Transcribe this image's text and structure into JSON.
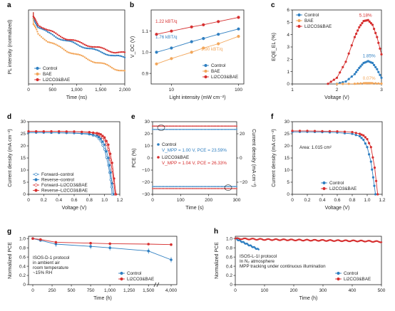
{
  "colors": {
    "control": "#2f7fc1",
    "bae": "#f2a65a",
    "li": "#d62f2f",
    "axis": "#222222"
  },
  "chart_data": [
    {
      "id": "a",
      "type": "scatter",
      "panel_label": "a",
      "xlabel": "Time (ns)",
      "ylabel": "PL intensity (normalized)",
      "xlim": [
        0,
        2000
      ],
      "ylim": [
        0.05,
        1.1
      ],
      "ylog": true,
      "xticks": [
        0,
        500,
        1000,
        1500,
        2000
      ],
      "xtick_labels": [
        "0",
        "500",
        "1,000",
        "1,500",
        "2,000"
      ],
      "series": [
        {
          "name": "Control",
          "color_key": "control",
          "x": [
            100,
            200,
            400,
            600,
            800,
            1000,
            1200,
            1400,
            1600,
            1800,
            2000
          ],
          "values": [
            0.75,
            0.55,
            0.42,
            0.35,
            0.3,
            0.26,
            0.23,
            0.2,
            0.18,
            0.16,
            0.15
          ]
        },
        {
          "name": "BAE",
          "color_key": "bae",
          "x": [
            100,
            200,
            400,
            600,
            800,
            1000,
            1200,
            1400,
            1600,
            1800,
            2000
          ],
          "values": [
            0.6,
            0.4,
            0.3,
            0.24,
            0.2,
            0.17,
            0.145,
            0.125,
            0.11,
            0.095,
            0.085
          ]
        },
        {
          "name": "Li2CO3&BAE",
          "color_key": "li",
          "x": [
            100,
            200,
            400,
            600,
            800,
            1000,
            1200,
            1400,
            1600,
            1800,
            2000
          ],
          "values": [
            0.8,
            0.6,
            0.47,
            0.39,
            0.33,
            0.29,
            0.26,
            0.23,
            0.21,
            0.19,
            0.18
          ]
        }
      ]
    },
    {
      "id": "b",
      "type": "scatter",
      "panel_label": "b",
      "xlabel": "Light intensity (mW cm⁻²)",
      "ylabel": "V_OC (V)",
      "xlim": [
        5,
        120
      ],
      "xlog": true,
      "ylim": [
        0.85,
        1.2
      ],
      "xticks": [
        10,
        100
      ],
      "xtick_labels": [
        "10",
        "100"
      ],
      "yticks": [
        0.9,
        1.0,
        1.1
      ],
      "ytick_labels": [
        "0.9",
        "1.0",
        "1.1"
      ],
      "series": [
        {
          "name": "Control",
          "color_key": "control",
          "x": [
            6,
            10,
            20,
            30,
            50,
            100
          ],
          "values": [
            1.0,
            1.02,
            1.05,
            1.065,
            1.085,
            1.11
          ]
        },
        {
          "name": "BAE",
          "color_key": "bae",
          "x": [
            6,
            10,
            20,
            30,
            50,
            100
          ],
          "values": [
            0.945,
            0.97,
            1.0,
            1.02,
            1.04,
            1.075
          ]
        },
        {
          "name": "Li2CO3&BAE",
          "color_key": "li",
          "x": [
            6,
            10,
            20,
            30,
            50,
            100
          ],
          "values": [
            1.085,
            1.1,
            1.12,
            1.13,
            1.145,
            1.165
          ]
        }
      ],
      "annotations": [
        "1.22 kBT/q",
        "1.76 kBT/q",
        "1.90 kBT/q"
      ]
    },
    {
      "id": "c",
      "type": "scatter",
      "panel_label": "c",
      "xlabel": "Voltage (V)",
      "ylabel": "EQE_EL (%)",
      "xlim": [
        1,
        3
      ],
      "ylim": [
        0,
        6
      ],
      "xticks": [
        1,
        2,
        3
      ],
      "xtick_labels": [
        "1",
        "2",
        "3"
      ],
      "yticks": [
        0,
        1,
        2,
        3,
        4,
        5,
        6
      ],
      "ytick_labels": [
        "0",
        "1",
        "2",
        "3",
        "4",
        "5",
        "6"
      ],
      "series": [
        {
          "name": "Control",
          "color_key": "control",
          "x": [
            2.0,
            2.2,
            2.4,
            2.5,
            2.6,
            2.7,
            2.8,
            2.9,
            3.0
          ],
          "values": [
            0.02,
            0.2,
            0.8,
            1.3,
            1.7,
            1.85,
            1.7,
            1.2,
            0.5
          ]
        },
        {
          "name": "BAE",
          "color_key": "bae",
          "x": [
            2.0,
            2.4,
            2.6,
            2.7,
            2.8,
            3.0
          ],
          "values": [
            0.0,
            0.02,
            0.06,
            0.07,
            0.06,
            0.03
          ]
        },
        {
          "name": "Li2CO3&BAE",
          "color_key": "li",
          "x": [
            1.8,
            2.0,
            2.2,
            2.4,
            2.5,
            2.6,
            2.7,
            2.8,
            2.9,
            3.0
          ],
          "values": [
            0.02,
            0.5,
            1.8,
            3.8,
            4.6,
            5.1,
            5.18,
            4.8,
            3.8,
            2.4
          ]
        }
      ],
      "annotations": [
        "5.18%",
        "1.85%",
        "0.07%"
      ]
    },
    {
      "id": "d",
      "type": "line",
      "panel_label": "d",
      "xlabel": "Voltage (V)",
      "ylabel": "Current density (mA cm⁻²)",
      "xlim": [
        0,
        1.2
      ],
      "ylim": [
        0,
        30
      ],
      "xticks": [
        0,
        0.2,
        0.4,
        0.6,
        0.8,
        1.0,
        1.2
      ],
      "xtick_labels": [
        "0",
        "0.2",
        "0.4",
        "0.6",
        "0.8",
        "1.0",
        "1.2"
      ],
      "yticks": [
        0,
        5,
        10,
        15,
        20,
        25,
        30
      ],
      "ytick_labels": [
        "0",
        "5",
        "10",
        "15",
        "20",
        "25",
        "30"
      ],
      "series": [
        {
          "name": "Forward–control",
          "color_key": "control",
          "marker": "open",
          "x": [
            0,
            0.2,
            0.4,
            0.6,
            0.8,
            0.9,
            0.95,
            1.0,
            1.05,
            1.08,
            1.1
          ],
          "values": [
            25.5,
            25.5,
            25.4,
            25.3,
            24.8,
            23.8,
            22.0,
            18.5,
            12.0,
            6.0,
            0
          ]
        },
        {
          "name": "Reverse–control",
          "color_key": "control",
          "marker": "filled",
          "x": [
            0,
            0.2,
            0.4,
            0.6,
            0.8,
            0.9,
            0.95,
            1.0,
            1.05,
            1.08,
            1.12
          ],
          "values": [
            25.5,
            25.5,
            25.4,
            25.3,
            25.0,
            24.3,
            23.0,
            20.5,
            15.0,
            9.0,
            0
          ]
        },
        {
          "name": "Forward–Li2CO3&BAE",
          "color_key": "li",
          "marker": "open",
          "x": [
            0,
            0.2,
            0.4,
            0.6,
            0.8,
            0.9,
            0.95,
            1.0,
            1.05,
            1.1,
            1.14
          ],
          "values": [
            26.0,
            26.0,
            26.0,
            25.9,
            25.6,
            25.0,
            24.2,
            22.5,
            18.5,
            10.0,
            0
          ]
        },
        {
          "name": "Reverse–Li2CO3&BAE",
          "color_key": "li",
          "marker": "filled",
          "x": [
            0,
            0.2,
            0.4,
            0.6,
            0.8,
            0.9,
            0.95,
            1.0,
            1.05,
            1.1,
            1.15
          ],
          "values": [
            26.0,
            26.0,
            26.0,
            25.9,
            25.7,
            25.3,
            24.8,
            23.5,
            20.5,
            13.0,
            0
          ]
        }
      ]
    },
    {
      "id": "e",
      "type": "line",
      "panel_label": "e",
      "xlabel": "Time (s)",
      "ylabel": "PCE (%)",
      "ylabel_right": "Current density (mA cm⁻²)",
      "xlim": [
        0,
        300
      ],
      "ylim": [
        -30,
        30
      ],
      "xticks": [
        0,
        100,
        200,
        300
      ],
      "xtick_labels": [
        "0",
        "100",
        "200",
        "300"
      ],
      "yticks": [
        -30,
        -20,
        -10,
        0,
        10,
        20,
        30
      ],
      "ytick_labels": [
        "−30",
        "−20",
        "−10",
        "0",
        "10",
        "20",
        "30"
      ],
      "yticks_right": [
        -20,
        0,
        20
      ],
      "ytick_labels_right": [
        "−20",
        "0",
        "20"
      ],
      "series": [
        {
          "name": "Control PCE",
          "color_key": "control",
          "x": [
            0,
            300
          ],
          "values": [
            23.59,
            23.59
          ]
        },
        {
          "name": "Li2CO3&BAE PCE",
          "color_key": "li",
          "x": [
            0,
            300
          ],
          "values": [
            26.33,
            26.33
          ]
        },
        {
          "name": "Control current",
          "color_key": "control",
          "x": [
            0,
            300
          ],
          "values": [
            -23.6,
            -23.6
          ]
        },
        {
          "name": "Li2CO3&BAE current",
          "color_key": "li",
          "x": [
            0,
            300
          ],
          "values": [
            -25.3,
            -25.3
          ]
        }
      ],
      "legend_entries": [
        {
          "name": "Control",
          "color_key": "control",
          "detail": "V_MPP = 1.00 V, PCE = 23.59%"
        },
        {
          "name": "Li2CO3&BAE",
          "color_key": "li",
          "detail": "V_MPP = 1.04 V, PCE = 26.33%"
        }
      ]
    },
    {
      "id": "f",
      "type": "line",
      "panel_label": "f",
      "xlabel": "Voltage (V)",
      "ylabel": "Current density (mA cm⁻²)",
      "xlim": [
        0,
        1.2
      ],
      "ylim": [
        0,
        30
      ],
      "xticks": [
        0,
        0.2,
        0.4,
        0.6,
        0.8,
        1.0,
        1.2
      ],
      "xtick_labels": [
        "0",
        "0.2",
        "0.4",
        "0.6",
        "0.8",
        "1.0",
        "1.2"
      ],
      "yticks": [
        0,
        5,
        10,
        15,
        20,
        25,
        30
      ],
      "ytick_labels": [
        "0",
        "5",
        "10",
        "15",
        "20",
        "25",
        "30"
      ],
      "annotation": "Area: 1.015 cm²",
      "series": [
        {
          "name": "Control",
          "color_key": "control",
          "x": [
            0,
            0.2,
            0.4,
            0.6,
            0.8,
            0.9,
            0.95,
            1.0,
            1.05,
            1.08,
            1.11
          ],
          "values": [
            25.8,
            25.8,
            25.7,
            25.5,
            25.0,
            24.0,
            22.5,
            19.5,
            13.5,
            7.0,
            0
          ]
        },
        {
          "name": "Li2CO3&BAE",
          "color_key": "li",
          "x": [
            0,
            0.2,
            0.4,
            0.6,
            0.8,
            0.9,
            0.95,
            1.0,
            1.05,
            1.1,
            1.14
          ],
          "values": [
            26.2,
            26.2,
            26.1,
            26.0,
            25.7,
            25.0,
            24.3,
            22.8,
            19.5,
            11.0,
            0
          ]
        }
      ]
    },
    {
      "id": "g",
      "type": "line",
      "panel_label": "g",
      "xlabel": "Time (h)",
      "ylabel": "Normalized PCE",
      "xlim": [
        0,
        4000
      ],
      "ylim": [
        0,
        1.05
      ],
      "x_axis_break": true,
      "xticks": [
        0,
        250,
        500,
        750,
        1000,
        1250,
        1500,
        4000
      ],
      "xtick_labels": [
        "0",
        "250",
        "500",
        "750",
        "1,000",
        "1,250",
        "1,500",
        "4,000"
      ],
      "yticks": [
        0,
        0.2,
        0.4,
        0.6,
        0.8,
        1.0
      ],
      "ytick_labels": [
        "0",
        "0.2",
        "0.4",
        "0.6",
        "0.8",
        "1.0"
      ],
      "protocol_text": [
        "ISOS-D-1 protocol",
        "in ambient air",
        "room temperature",
        "~15% RH"
      ],
      "series": [
        {
          "name": "Control",
          "color_key": "control",
          "x": [
            0,
            100,
            300,
            750,
            1000,
            1500,
            4000
          ],
          "values": [
            1.0,
            0.96,
            0.88,
            0.83,
            0.8,
            0.73,
            0.54
          ]
        },
        {
          "name": "Li2CO3&BAE",
          "color_key": "li",
          "x": [
            0,
            100,
            300,
            750,
            1000,
            1500,
            4000
          ],
          "values": [
            1.0,
            0.98,
            0.92,
            0.9,
            0.89,
            0.88,
            0.87
          ]
        }
      ]
    },
    {
      "id": "h",
      "type": "scatter",
      "panel_label": "h",
      "xlabel": "Time (h)",
      "ylabel": "Normalized PCE",
      "xlim": [
        0,
        500
      ],
      "ylim": [
        0,
        1.05
      ],
      "xticks": [
        0,
        100,
        200,
        300,
        400,
        500
      ],
      "xtick_labels": [
        "0",
        "100",
        "200",
        "300",
        "400",
        "500"
      ],
      "yticks": [
        0,
        0.2,
        0.4,
        0.6,
        0.8,
        1.0
      ],
      "ytick_labels": [
        "0",
        "0.2",
        "0.4",
        "0.6",
        "0.8",
        "1.0"
      ],
      "protocol_text": [
        "ISOS-L-1I protocol",
        "In N₂ atmosphere",
        "MPP tracking under continuous illumination"
      ],
      "series": [
        {
          "name": "Control",
          "color_key": "control",
          "x": [
            0,
            10,
            20,
            30,
            40,
            50,
            60,
            70,
            80
          ],
          "values": [
            1.0,
            0.97,
            0.94,
            0.91,
            0.88,
            0.85,
            0.82,
            0.79,
            0.76
          ]
        },
        {
          "name": "Li2CO3&BAE",
          "color_key": "li",
          "x": [
            0,
            50,
            100,
            150,
            200,
            250,
            300,
            350,
            400,
            450,
            500
          ],
          "values": [
            1.0,
            0.99,
            0.98,
            0.975,
            0.97,
            0.965,
            0.96,
            0.955,
            0.95,
            0.945,
            0.93
          ]
        }
      ]
    }
  ]
}
